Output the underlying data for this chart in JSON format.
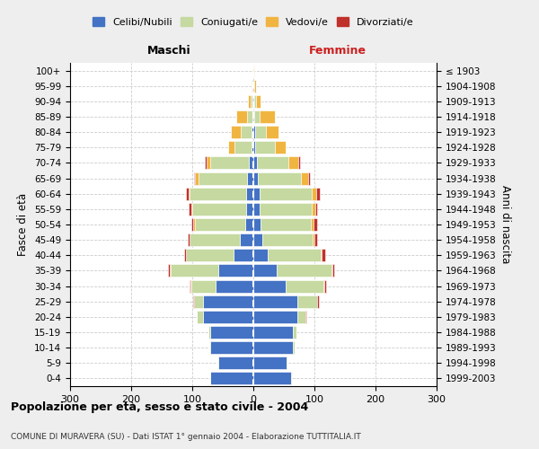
{
  "age_groups": [
    "0-4",
    "5-9",
    "10-14",
    "15-19",
    "20-24",
    "25-29",
    "30-34",
    "35-39",
    "40-44",
    "45-49",
    "50-54",
    "55-59",
    "60-64",
    "65-69",
    "70-74",
    "75-79",
    "80-84",
    "85-89",
    "90-94",
    "95-99",
    "100+"
  ],
  "birth_years": [
    "1999-2003",
    "1994-1998",
    "1989-1993",
    "1984-1988",
    "1979-1983",
    "1974-1978",
    "1969-1973",
    "1964-1968",
    "1959-1963",
    "1954-1958",
    "1949-1953",
    "1944-1948",
    "1939-1943",
    "1934-1938",
    "1929-1933",
    "1924-1928",
    "1919-1923",
    "1914-1918",
    "1909-1913",
    "1904-1908",
    "≤ 1903"
  ],
  "colors": {
    "celibe": "#4472C4",
    "coniugato": "#C5D9A0",
    "vedovo": "#F0B541",
    "divorziato": "#C0312B"
  },
  "maschi": {
    "celibe": [
      70,
      58,
      70,
      70,
      82,
      82,
      62,
      58,
      32,
      22,
      13,
      12,
      12,
      10,
      8,
      3,
      3,
      2,
      2,
      1,
      0
    ],
    "coniugato": [
      1,
      1,
      2,
      3,
      10,
      15,
      40,
      78,
      78,
      82,
      83,
      88,
      92,
      80,
      62,
      28,
      18,
      8,
      3,
      1,
      0
    ],
    "vedovo": [
      0,
      0,
      0,
      0,
      0,
      0,
      1,
      1,
      1,
      1,
      2,
      2,
      2,
      5,
      7,
      10,
      16,
      18,
      4,
      1,
      0
    ],
    "divorziato": [
      0,
      0,
      0,
      0,
      1,
      1,
      2,
      2,
      2,
      3,
      3,
      4,
      5,
      2,
      2,
      0,
      0,
      0,
      0,
      0,
      0
    ]
  },
  "femmine": {
    "celibe": [
      62,
      55,
      65,
      65,
      72,
      72,
      53,
      38,
      24,
      15,
      12,
      10,
      10,
      8,
      6,
      3,
      3,
      2,
      2,
      1,
      0
    ],
    "coniugato": [
      1,
      1,
      3,
      5,
      14,
      32,
      62,
      90,
      86,
      82,
      82,
      86,
      85,
      70,
      52,
      32,
      18,
      8,
      3,
      1,
      0
    ],
    "vedovo": [
      0,
      0,
      0,
      0,
      0,
      1,
      1,
      1,
      2,
      3,
      5,
      5,
      8,
      12,
      16,
      18,
      20,
      26,
      7,
      2,
      1
    ],
    "divorziato": [
      0,
      0,
      0,
      0,
      1,
      2,
      3,
      4,
      6,
      5,
      6,
      3,
      6,
      2,
      2,
      0,
      0,
      0,
      0,
      0,
      0
    ]
  },
  "xlim": 300,
  "title": "Popolazione per età, sesso e stato civile - 2004",
  "subtitle": "COMUNE DI MURAVERA (SU) - Dati ISTAT 1° gennaio 2004 - Elaborazione TUTTITALIA.IT",
  "ylabel_left": "Fasce di età",
  "ylabel_right": "Anni di nascita",
  "xlabel_left": "Maschi",
  "xlabel_right": "Femmine",
  "xticks": [
    -300,
    -200,
    -100,
    0,
    100,
    200,
    300
  ],
  "xticklabels": [
    "300",
    "200",
    "100",
    "0",
    "100",
    "200",
    "300"
  ],
  "bg_color": "#eeeeee",
  "plot_bg": "#ffffff",
  "legend_labels": [
    "Celibi/Nubili",
    "Coniugati/e",
    "Vedovi/e",
    "Divorziati/e"
  ]
}
